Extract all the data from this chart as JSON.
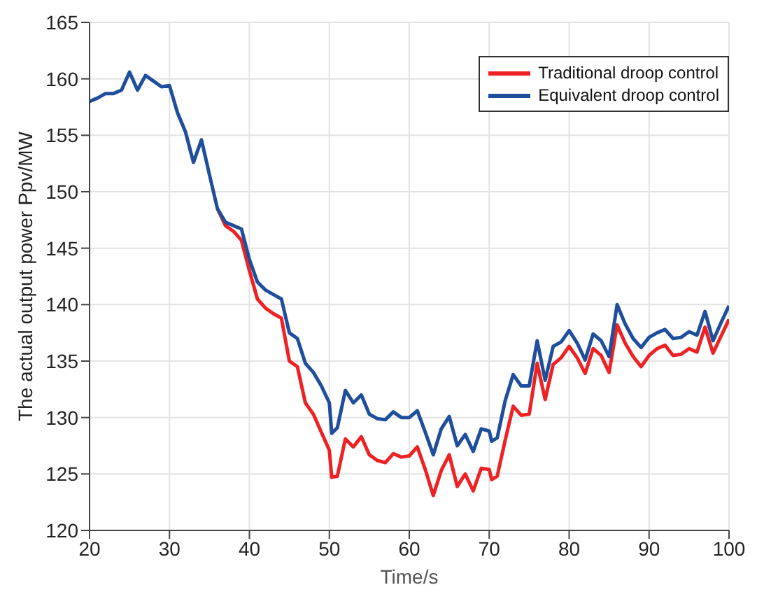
{
  "chart_data": {
    "type": "line",
    "xlabel": "Time/s",
    "ylabel": "The actual output power  Ppv/MW",
    "x": [
      20,
      21,
      22,
      23,
      24,
      25,
      26,
      27,
      28,
      29,
      30,
      31,
      32,
      33,
      34,
      35,
      36,
      37,
      38,
      39,
      40,
      41,
      42,
      43,
      44,
      45,
      46,
      47,
      48,
      49,
      50,
      50.3,
      51,
      52,
      53,
      54,
      55,
      56,
      57,
      58,
      59,
      60,
      61,
      62,
      63,
      64,
      65,
      66,
      67,
      68,
      69,
      70,
      70.3,
      71,
      72,
      73,
      74,
      75,
      76,
      77,
      78,
      79,
      80,
      81,
      82,
      83,
      84,
      85,
      86,
      87,
      88,
      89,
      90,
      91,
      92,
      93,
      94,
      95,
      96,
      97,
      98,
      99,
      100
    ],
    "series": [
      {
        "name": "Traditional droop control",
        "color": "#ee2224",
        "values": [
          null,
          null,
          null,
          null,
          null,
          null,
          null,
          null,
          null,
          null,
          null,
          null,
          null,
          null,
          null,
          null,
          148.5,
          147,
          146.5,
          145.7,
          143,
          140.5,
          139.7,
          139.2,
          138.8,
          135,
          134.5,
          131.3,
          130.3,
          128.7,
          127.1,
          124.7,
          124.8,
          128.1,
          127.4,
          128.3,
          126.7,
          126.2,
          126,
          126.8,
          126.5,
          126.6,
          127.4,
          125.4,
          123.1,
          125.3,
          126.7,
          123.9,
          125,
          123.5,
          125.5,
          125.4,
          124.5,
          124.8,
          128,
          131,
          130.2,
          130.3,
          134.8,
          131.6,
          134.7,
          135.3,
          136.3,
          135.3,
          133.9,
          136.1,
          135.5,
          134,
          138.2,
          136.6,
          135.4,
          134.5,
          135.5,
          136.1,
          136.4,
          135.5,
          135.6,
          136.1,
          135.8,
          138,
          135.7,
          137.2,
          138.7
        ]
      },
      {
        "name": "Equivalent droop control",
        "color": "#1f4e9c",
        "values": [
          158,
          158.3,
          158.7,
          158.7,
          159,
          160.6,
          159,
          160.3,
          159.8,
          159.3,
          159.4,
          157,
          155.3,
          152.6,
          154.6,
          151.5,
          148.5,
          147.3,
          147,
          146.7,
          144,
          142,
          141.3,
          140.9,
          140.5,
          137.5,
          137,
          134.8,
          134,
          132.8,
          131.3,
          128.6,
          129.1,
          132.4,
          131.3,
          132,
          130.3,
          129.9,
          129.8,
          130.5,
          130,
          130,
          130.6,
          128.7,
          126.7,
          129,
          130.1,
          127.5,
          128.5,
          127,
          129,
          128.8,
          127.9,
          128.2,
          131.5,
          133.8,
          132.8,
          132.8,
          136.8,
          133.3,
          136.3,
          136.7,
          137.7,
          136.6,
          135.1,
          137.4,
          136.8,
          135.4,
          140,
          138.3,
          137,
          136.2,
          137.1,
          137.5,
          137.8,
          137,
          137.1,
          137.6,
          137.3,
          139.4,
          136.8,
          138.4,
          139.9
        ]
      }
    ],
    "xlim": [
      20,
      100
    ],
    "xticks": [
      20,
      30,
      40,
      50,
      60,
      70,
      80,
      90,
      100
    ],
    "ylim": [
      120,
      165
    ],
    "yticks": [
      120,
      125,
      130,
      135,
      140,
      145,
      150,
      155,
      160,
      165
    ],
    "grid": true,
    "legend": "top right",
    "marker": "none",
    "line_style": "solid"
  }
}
